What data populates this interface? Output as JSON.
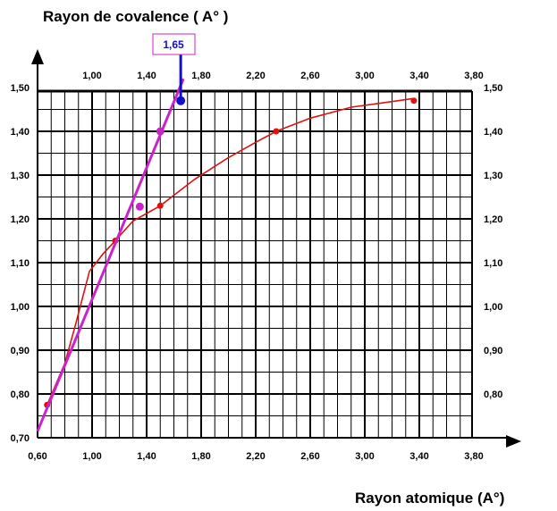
{
  "chart_data": {
    "type": "line",
    "ylabel": "Rayon de covalence ( A° )",
    "xlabel": "Rayon atomique (A°)",
    "x_ticks": [
      "0,60",
      "1,00",
      "1,40",
      "1,80",
      "2,20",
      "2,60",
      "3,00",
      "3,40",
      "3,80"
    ],
    "x_top_ticks": [
      "1,00",
      "1,40",
      "1,80",
      "2,20",
      "2,60",
      "3,00",
      "3,40",
      "3,80"
    ],
    "y_ticks_left": [
      "0,70",
      "0,80",
      "0,90",
      "1,00",
      "1,10",
      "1,20",
      "1,30",
      "1,40",
      "1,50"
    ],
    "y_ticks_right": [
      "0,80",
      "0,90",
      "1,00",
      "1,10",
      "1,20",
      "1,30",
      "1,40",
      "1,50"
    ],
    "xlim": [
      0.6,
      3.9
    ],
    "ylim": [
      0.7,
      1.52
    ],
    "grid": true,
    "annotation": {
      "text": "1,65",
      "x": 1.65,
      "y": 1.47
    },
    "series": [
      {
        "color": "#e01010",
        "values": [
          [
            0.67,
            0.775
          ],
          [
            0.8,
            0.87
          ],
          [
            0.88,
            0.96
          ],
          [
            0.98,
            1.08
          ],
          [
            1.08,
            1.12
          ],
          [
            1.17,
            1.15
          ],
          [
            1.3,
            1.195
          ],
          [
            1.5,
            1.23
          ],
          [
            1.75,
            1.29
          ],
          [
            2.0,
            1.34
          ],
          [
            2.2,
            1.375
          ],
          [
            2.35,
            1.4
          ],
          [
            2.6,
            1.43
          ],
          [
            2.9,
            1.455
          ],
          [
            3.2,
            1.468
          ],
          [
            3.36,
            1.475
          ]
        ],
        "points": [
          [
            0.67,
            0.775
          ],
          [
            1.17,
            1.15
          ],
          [
            1.5,
            1.23
          ],
          [
            2.35,
            1.4
          ],
          [
            3.36,
            1.47
          ]
        ]
      },
      {
        "color": "#cc22cc",
        "values": [
          [
            0.6,
            0.715
          ],
          [
            1.67,
            1.52
          ]
        ],
        "points": [
          [
            1.35,
            1.228
          ],
          [
            1.5,
            1.4
          ]
        ]
      }
    ]
  }
}
